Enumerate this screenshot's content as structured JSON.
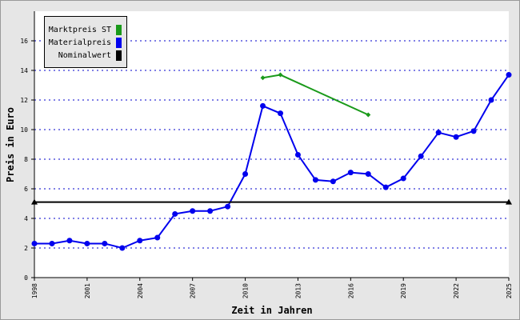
{
  "chart_data": {
    "type": "line",
    "x_label": "Zeit in Jahren",
    "y_label": "Preis in Euro",
    "xlim": [
      1998,
      2025
    ],
    "xticks": [
      1998,
      2001,
      2004,
      2007,
      2010,
      2013,
      2016,
      2019,
      2022,
      2025
    ],
    "ylim": [
      0,
      18
    ],
    "yticks": [
      0,
      2,
      4,
      6,
      8,
      10,
      12,
      14,
      16
    ],
    "grid": true,
    "series": [
      {
        "name": "Marktpreis ST",
        "color": "#1a9a1a",
        "marker": "diamond",
        "x": [
          2011,
          2012,
          2017
        ],
        "values": [
          13.5,
          13.7,
          11.0
        ]
      },
      {
        "name": "Materialpreis",
        "color": "#0000ee",
        "marker": "circle",
        "x": [
          1998,
          1999,
          2000,
          2001,
          2002,
          2003,
          2004,
          2005,
          2006,
          2007,
          2008,
          2009,
          2010,
          2011,
          2012,
          2013,
          2014,
          2015,
          2016,
          2017,
          2018,
          2019,
          2020,
          2021,
          2022,
          2023,
          2024,
          2025
        ],
        "values": [
          2.3,
          2.3,
          2.5,
          2.3,
          2.3,
          2.0,
          2.5,
          2.7,
          4.3,
          4.5,
          4.5,
          4.8,
          7.0,
          11.6,
          11.1,
          8.3,
          6.6,
          6.5,
          7.1,
          7.0,
          6.1,
          6.7,
          8.2,
          9.8,
          9.5,
          9.9,
          12.0,
          13.7
        ]
      },
      {
        "name": "Nominalwert",
        "color": "#000000",
        "marker": "triangle",
        "x": [
          1998,
          2025
        ],
        "values": [
          5.1,
          5.1
        ]
      }
    ]
  }
}
